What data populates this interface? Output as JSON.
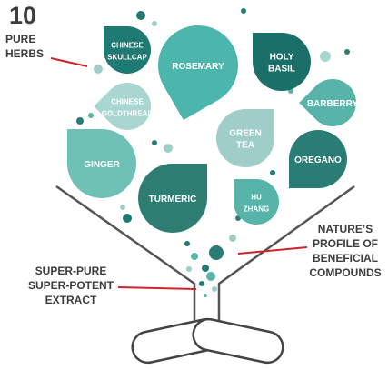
{
  "header": {
    "count": "10",
    "label": [
      "PURE",
      "HERBS"
    ]
  },
  "herbs": [
    {
      "label": [
        "CHINESE",
        "SKULLCAP"
      ]
    },
    {
      "label": [
        "ROSEMARY"
      ]
    },
    {
      "label": [
        "HOLY",
        "BASIL"
      ]
    },
    {
      "label": [
        "CHINESE",
        "GOLDTHREAD"
      ]
    },
    {
      "label": [
        "BARBERRY"
      ]
    },
    {
      "label": [
        "GREEN",
        "TEA"
      ]
    },
    {
      "label": [
        "OREGANO"
      ]
    },
    {
      "label": [
        "GINGER"
      ]
    },
    {
      "label": [
        "TURMERIC"
      ]
    },
    {
      "label": [
        "HU",
        "ZHANG"
      ]
    }
  ],
  "callouts": [
    {
      "lines": [
        "NATURE’S",
        "PROFILE OF",
        "BENEFICIAL",
        "COMPOUNDS"
      ]
    },
    {
      "lines": [
        "SUPER-PURE",
        "SUPER-POTENT",
        "EXTRACT"
      ]
    }
  ]
}
